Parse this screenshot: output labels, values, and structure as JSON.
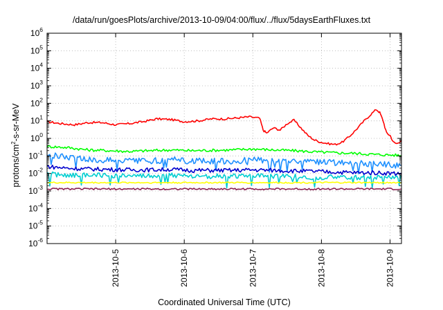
{
  "chart_data": {
    "type": "line",
    "title": "/data/run/goesPlots/archive/2013-10-09/04:00/flux/../flux/5daysEarthFluxes.txt",
    "xlabel": "Coordinated Universal Time (UTC)",
    "ylabel": "protons/cm2-s-sr-MeV",
    "ylabel_parts": {
      "pre": "protons/cm",
      "sup": "2",
      "post": "-s-sr-MeV"
    },
    "x_start": "2013-10-04 00:00",
    "x_end": "2013-10-09 04:00",
    "xlim": [
      4.0,
      9.1667
    ],
    "x_ticks": [
      5,
      6,
      7,
      8,
      9
    ],
    "x_tick_labels": [
      "2013-10-5",
      "2013-10-6",
      "2013-10-7",
      "2013-10-8",
      "2013-10-9"
    ],
    "y_scale": "log",
    "ylim": [
      1e-06,
      1000000.0
    ],
    "y_tick_exponents": [
      -6,
      -5,
      -4,
      -3,
      -2,
      -1,
      0,
      1,
      2,
      3,
      4,
      5,
      6
    ],
    "y_tick_base": "10",
    "grid": true,
    "legend": "none",
    "series": [
      {
        "color": "#ff0000",
        "x": [
          4.0,
          4.2,
          4.4,
          4.6,
          4.8,
          5.0,
          5.2,
          5.4,
          5.6,
          5.8,
          6.0,
          6.2,
          6.4,
          6.6,
          6.8,
          6.95,
          7.1,
          7.15,
          7.2,
          7.3,
          7.4,
          7.5,
          7.6,
          7.7,
          7.8,
          7.9,
          8.0,
          8.1,
          8.2,
          8.3,
          8.4,
          8.5,
          8.6,
          8.7,
          8.8,
          8.85,
          8.9,
          8.95,
          9.0,
          9.05,
          9.1,
          9.167
        ],
        "y": [
          9,
          7,
          6,
          8,
          8,
          6,
          7,
          9,
          13,
          12,
          9,
          10,
          13,
          13,
          15,
          17,
          14,
          3,
          2,
          4,
          3,
          7,
          11,
          4,
          1.5,
          0.8,
          0.6,
          0.5,
          0.45,
          0.6,
          1.2,
          3,
          8,
          20,
          45,
          30,
          10,
          2,
          1.5,
          0.6,
          0.5,
          0.8
        ]
      },
      {
        "color": "#00ff00",
        "x": [
          4.0,
          4.3,
          4.6,
          4.9,
          5.2,
          5.5,
          5.8,
          6.1,
          6.4,
          6.7,
          7.0,
          7.3,
          7.6,
          7.9,
          8.2,
          8.5,
          8.8,
          9.1,
          9.167
        ],
        "y": [
          0.35,
          0.3,
          0.22,
          0.2,
          0.18,
          0.2,
          0.22,
          0.2,
          0.21,
          0.22,
          0.25,
          0.22,
          0.2,
          0.17,
          0.15,
          0.14,
          0.12,
          0.11,
          0.1
        ]
      },
      {
        "color": "#1e90ff",
        "x": [
          4.0,
          4.3,
          4.6,
          4.9,
          5.2,
          5.5,
          5.8,
          6.1,
          6.4,
          6.7,
          7.0,
          7.3,
          7.6,
          7.9,
          8.2,
          8.5,
          8.8,
          9.1,
          9.167
        ],
        "y": [
          0.12,
          0.09,
          0.06,
          0.06,
          0.05,
          0.05,
          0.06,
          0.05,
          0.05,
          0.05,
          0.06,
          0.05,
          0.05,
          0.045,
          0.04,
          0.04,
          0.035,
          0.03,
          0.03
        ]
      },
      {
        "color": "#0000cd",
        "x": [
          4.0,
          4.3,
          4.6,
          4.9,
          5.2,
          5.5,
          5.8,
          6.1,
          6.4,
          6.7,
          7.0,
          7.3,
          7.6,
          7.9,
          8.2,
          8.5,
          8.8,
          9.1,
          9.167
        ],
        "y": [
          0.025,
          0.02,
          0.018,
          0.017,
          0.016,
          0.016,
          0.017,
          0.015,
          0.015,
          0.015,
          0.016,
          0.015,
          0.014,
          0.013,
          0.012,
          0.011,
          0.011,
          0.01,
          0.01
        ]
      },
      {
        "color": "#00ced1",
        "x": [
          4.0,
          4.3,
          4.6,
          4.9,
          5.2,
          5.5,
          5.8,
          6.1,
          6.4,
          6.7,
          7.0,
          7.3,
          7.6,
          7.9,
          8.2,
          8.5,
          8.8,
          9.1,
          9.167
        ],
        "y": [
          0.009,
          0.008,
          0.008,
          0.008,
          0.007,
          0.007,
          0.008,
          0.007,
          0.007,
          0.007,
          0.007,
          0.007,
          0.007,
          0.006,
          0.006,
          0.006,
          0.006,
          0.006,
          0.006
        ]
      },
      {
        "color": "#ffff00",
        "x": [
          4.0,
          4.5,
          5.0,
          5.5,
          6.0,
          6.5,
          7.0,
          7.5,
          8.0,
          8.5,
          9.0,
          9.167
        ],
        "y": [
          0.003,
          0.003,
          0.003,
          0.003,
          0.003,
          0.003,
          0.003,
          0.003,
          0.003,
          0.003,
          0.003,
          0.003
        ]
      },
      {
        "color": "#8b2252",
        "x": [
          4.0,
          4.5,
          5.0,
          5.5,
          6.0,
          6.5,
          7.0,
          7.5,
          8.0,
          8.5,
          9.0,
          9.167
        ],
        "y": [
          0.0013,
          0.0013,
          0.0013,
          0.0013,
          0.0013,
          0.0013,
          0.0013,
          0.0013,
          0.0013,
          0.0013,
          0.0013,
          0.0013
        ]
      }
    ]
  }
}
